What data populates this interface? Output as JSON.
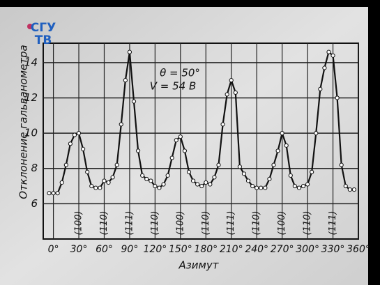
{
  "logo": {
    "line1": "СГУ",
    "line2": "ТВ"
  },
  "chart_data": {
    "type": "line",
    "y_label": "Отклонение гальванометра",
    "x_label": "Азимут",
    "annotations": [
      "θ = 50°",
      "V = 54 В"
    ],
    "x": [
      -5,
      0,
      5,
      10,
      15,
      20,
      25,
      30,
      35,
      40,
      45,
      50,
      55,
      60,
      65,
      70,
      75,
      80,
      85,
      90,
      95,
      100,
      105,
      110,
      115,
      120,
      125,
      130,
      135,
      140,
      145,
      150,
      155,
      160,
      165,
      170,
      175,
      180,
      185,
      190,
      195,
      200,
      205,
      210,
      215,
      220,
      225,
      230,
      235,
      240,
      245,
      250,
      255,
      260,
      265,
      270,
      275,
      280,
      285,
      290,
      295,
      300,
      305,
      310,
      315,
      320,
      325,
      330,
      335,
      340,
      345,
      350,
      355
    ],
    "series": [
      {
        "color": "#111111",
        "values": [
          6.6,
          6.6,
          6.6,
          7.2,
          8.2,
          9.4,
          9.9,
          10,
          9.1,
          7.8,
          7,
          6.9,
          6.9,
          7.3,
          7.2,
          7.5,
          8.2,
          10.5,
          13,
          14.6,
          11.8,
          9,
          7.6,
          7.4,
          7.3,
          7,
          6.9,
          7.1,
          7.6,
          8.6,
          9.6,
          9.8,
          9,
          7.8,
          7.3,
          7.1,
          7,
          7.2,
          7.1,
          7.5,
          8.2,
          10.5,
          12.2,
          13,
          12.3,
          8.1,
          7.7,
          7.3,
          7,
          6.9,
          6.9,
          6.9,
          7.4,
          8.2,
          9,
          10,
          9.3,
          7.6,
          7,
          6.9,
          7,
          7.1,
          7.8,
          10,
          12.5,
          13.7,
          14.6,
          14.4,
          12,
          8.2,
          7,
          6.8,
          6.8
        ]
      }
    ],
    "plane_labels": [
      {
        "x": 30,
        "label": "(100)"
      },
      {
        "x": 60,
        "label": "(110)"
      },
      {
        "x": 90,
        "label": "(111)"
      },
      {
        "x": 120,
        "label": "(110)"
      },
      {
        "x": 150,
        "label": "(100)"
      },
      {
        "x": 180,
        "label": "(110)"
      },
      {
        "x": 210,
        "label": "(111)"
      },
      {
        "x": 240,
        "label": "(110)"
      },
      {
        "x": 270,
        "label": "(100)"
      },
      {
        "x": 300,
        "label": "(110)"
      },
      {
        "x": 330,
        "label": "(111)"
      }
    ],
    "xlim": [
      -12,
      360
    ],
    "ylim": [
      4,
      15.1
    ],
    "xticks": [
      {
        "value": 0,
        "label": "0°"
      },
      {
        "value": 30,
        "label": "30°"
      },
      {
        "value": 60,
        "label": "60°"
      },
      {
        "value": 90,
        "label": "90°"
      },
      {
        "value": 120,
        "label": "120°"
      },
      {
        "value": 150,
        "label": "150°"
      },
      {
        "value": 180,
        "label": "180°"
      },
      {
        "value": 210,
        "label": "210°"
      },
      {
        "value": 240,
        "label": "240°"
      },
      {
        "value": 270,
        "label": "270°"
      },
      {
        "value": 300,
        "label": "300°"
      },
      {
        "value": 330,
        "label": "330°"
      },
      {
        "value": 360,
        "label": "360°"
      }
    ],
    "yticks": [
      6,
      8,
      10,
      12,
      14
    ],
    "grid": true
  }
}
